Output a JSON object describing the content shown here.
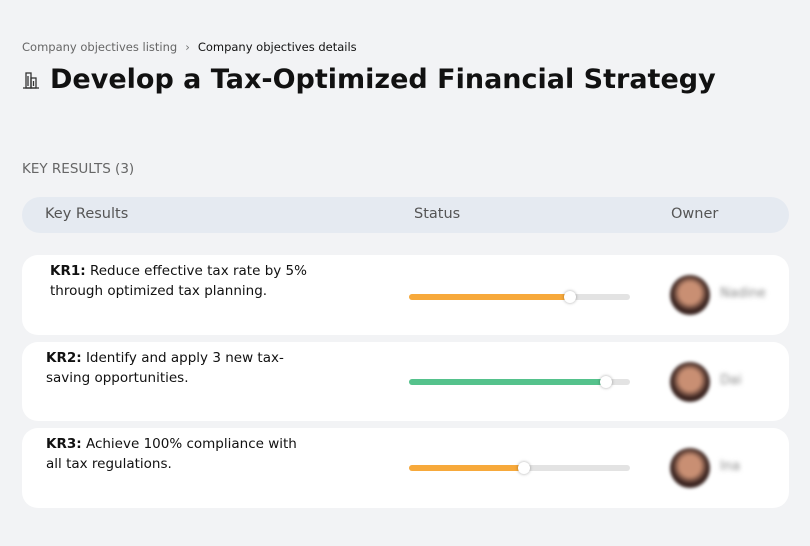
{
  "breadcrumb": {
    "parent": "Company objectives listing",
    "current": "Company objectives details"
  },
  "header": {
    "title": "Develop a Tax-Optimized Financial Strategy"
  },
  "section": {
    "title": "KEY RESULTS (3)"
  },
  "table": {
    "columns": [
      "Key Results",
      "Status",
      "Owner"
    ],
    "rows": [
      {
        "label": "KR1:",
        "text": "Reduce effective tax rate by 5% through optimized tax planning.",
        "progress": 73,
        "color": "#f7a93b",
        "owner": "Nadine"
      },
      {
        "label": "KR2:",
        "text": "Identify and apply 3 new tax-saving opportunities.",
        "progress": 89,
        "color": "#55c28c",
        "owner": "Dai"
      },
      {
        "label": "KR3:",
        "text": "Achieve 100% compliance with all tax regulations.",
        "progress": 52,
        "color": "#f7a93b",
        "owner": "Ina"
      }
    ]
  }
}
